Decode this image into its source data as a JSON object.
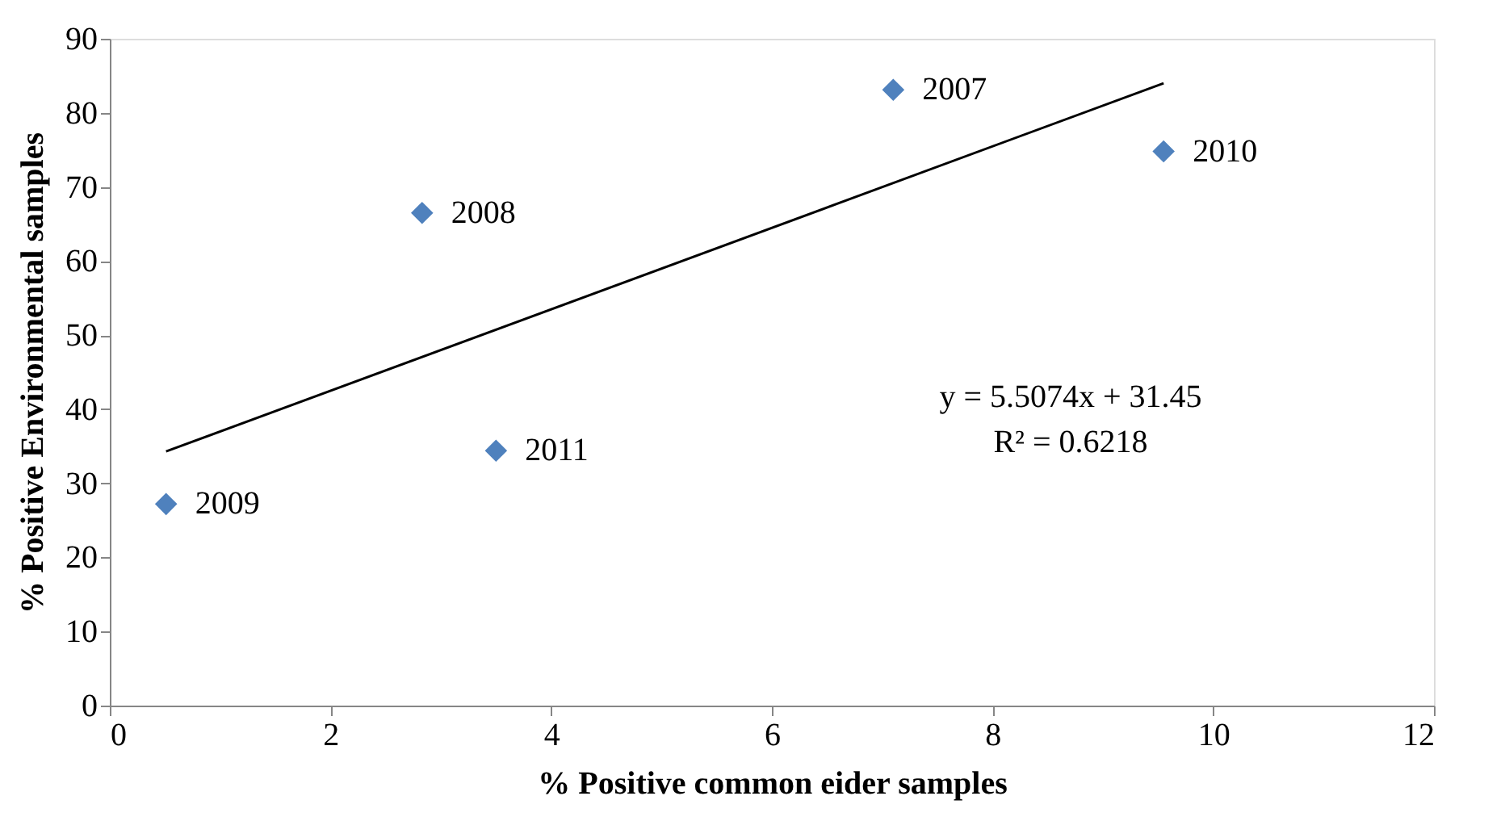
{
  "chart_data": {
    "type": "scatter",
    "xlabel": "% Positive common eider samples",
    "ylabel": "% Positive Environmental samples",
    "xlim": [
      0,
      12
    ],
    "xticks": [
      0,
      2,
      4,
      6,
      8,
      10,
      12
    ],
    "ylim": [
      0,
      90
    ],
    "yticks": [
      0,
      10,
      20,
      30,
      40,
      50,
      60,
      70,
      80,
      90
    ],
    "grid": false,
    "series": [
      {
        "color": "#4f81bd",
        "marker": "diamond",
        "x": [
          0.51,
          2.83,
          3.5,
          7.1,
          9.55
        ],
        "values": [
          27.2,
          66.5,
          34.4,
          83.1,
          74.8
        ]
      },
      {
        "type": "line",
        "color": "#000000",
        "line_style": "solid",
        "x": [
          0.51,
          9.55
        ],
        "values": [
          34.3,
          84.0
        ]
      }
    ],
    "annotations": [
      {
        "text": "2009",
        "x": 0.51,
        "y": 27.2
      },
      {
        "text": "2008",
        "x": 2.83,
        "y": 66.5
      },
      {
        "text": "2011",
        "x": 3.5,
        "y": 34.4
      },
      {
        "text": "2007",
        "x": 7.1,
        "y": 83.1
      },
      {
        "text": "2010",
        "x": 9.55,
        "y": 74.8
      },
      "y = 5.5074x + 31.45",
      "R² = 0.6218"
    ]
  }
}
